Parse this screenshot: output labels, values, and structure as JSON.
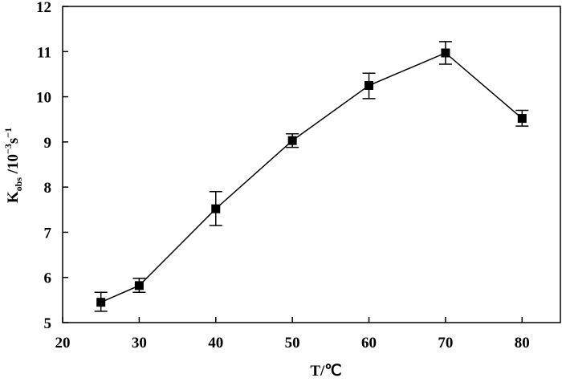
{
  "chart_data": {
    "type": "line",
    "xlabel": "T/℃",
    "ylabel": {
      "main": "K",
      "sub": "obs",
      "unit_pre": " /10",
      "exp1": "−3",
      "unit_mid": "s",
      "exp2": "−1"
    },
    "xlim": [
      20,
      85
    ],
    "ylim": [
      5,
      12
    ],
    "xticks": [
      20,
      30,
      40,
      50,
      60,
      70,
      80
    ],
    "yticks": [
      5,
      6,
      7,
      8,
      9,
      10,
      11,
      12
    ],
    "grid": false,
    "series": [
      {
        "marker": "square",
        "color": "#000000",
        "points": [
          {
            "x": 25,
            "y": 5.45,
            "err_low": 5.25,
            "err_high": 5.67
          },
          {
            "x": 30,
            "y": 5.82,
            "err_low": 5.67,
            "err_high": 5.98
          },
          {
            "x": 40,
            "y": 7.52,
            "err_low": 7.15,
            "err_high": 7.9
          },
          {
            "x": 50,
            "y": 9.03,
            "err_low": 8.88,
            "err_high": 9.18
          },
          {
            "x": 60,
            "y": 10.25,
            "err_low": 9.96,
            "err_high": 10.52
          },
          {
            "x": 70,
            "y": 10.97,
            "err_low": 10.72,
            "err_high": 11.22
          },
          {
            "x": 80,
            "y": 9.52,
            "err_low": 9.35,
            "err_high": 9.7
          }
        ]
      }
    ]
  }
}
